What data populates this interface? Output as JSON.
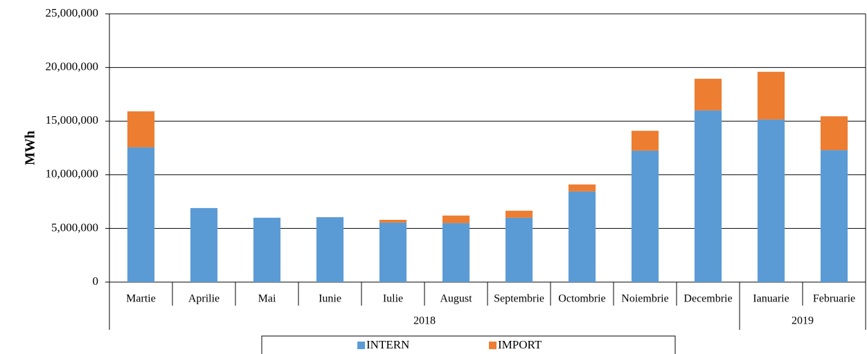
{
  "chart_data": {
    "type": "stacked_bar",
    "y_label": "MWh",
    "categories": [
      "Martie",
      "Aprilie",
      "Mai",
      "Iunie",
      "Iulie",
      "August",
      "Septembrie",
      "Octombrie",
      "Noiembrie",
      "Decembrie",
      "Ianuarie",
      "Februarie"
    ],
    "groups": [
      {
        "label": "2018",
        "span": 10
      },
      {
        "label": "2019",
        "span": 2
      }
    ],
    "series": [
      {
        "name": "INTERN",
        "color": "#5b9bd5",
        "values": [
          12560000,
          6900000,
          6000000,
          6050000,
          5550000,
          5500000,
          6000000,
          8450000,
          12250000,
          16000000,
          15150000,
          12300000
        ]
      },
      {
        "name": "IMPORT",
        "color": "#ed7d31",
        "values": [
          3350000,
          0,
          0,
          0,
          250000,
          700000,
          650000,
          650000,
          1850000,
          2950000,
          4450000,
          3150000
        ]
      }
    ],
    "ylim": [
      0,
      25000000
    ],
    "yticks": [
      0,
      {
        "value": 5000000,
        "label": "5,000,000"
      },
      {
        "value": 10000000,
        "label": "10,000,000"
      },
      {
        "value": 15000000,
        "label": "15,000,000"
      },
      {
        "value": 20000000,
        "label": "20,000,000"
      },
      {
        "value": 25000000,
        "label": "25,000,000"
      }
    ],
    "grid": true,
    "legend": "bottom"
  }
}
